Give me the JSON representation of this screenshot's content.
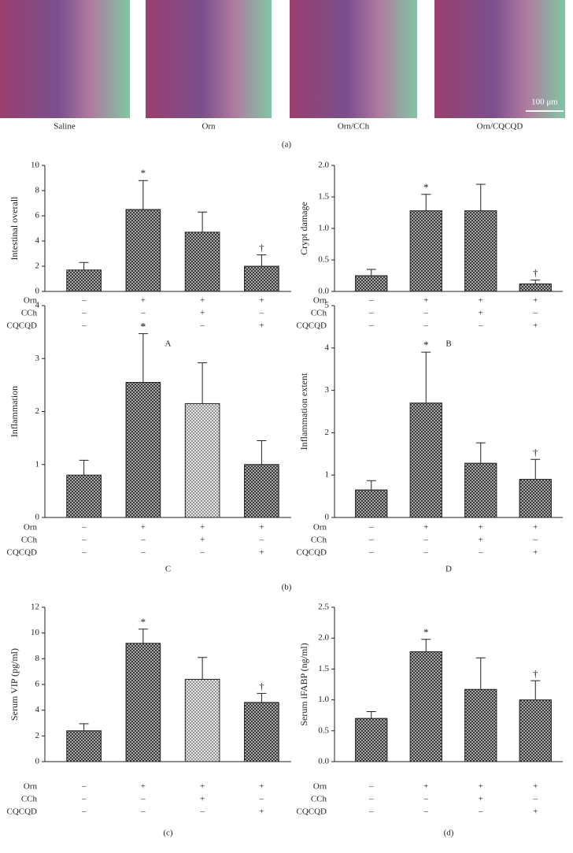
{
  "figure": {
    "images": [
      {
        "label": "Saline"
      },
      {
        "label": "Orn"
      },
      {
        "label": "Orn/CCh"
      },
      {
        "label": "Orn/CQCQD"
      }
    ],
    "scale_bar": "100 μm",
    "group_labels": [
      "(a)",
      "(b)"
    ]
  },
  "chart_data": [
    {
      "type": "bar",
      "label": "A",
      "ylabel": "Intestinal overall",
      "values": [
        1.7,
        6.5,
        4.7,
        2.0
      ],
      "errors": [
        0.6,
        2.3,
        1.6,
        0.9
      ],
      "markers": [
        null,
        "*",
        null,
        "†"
      ],
      "patterns": [
        "dense",
        "dense",
        "dense",
        "dense"
      ],
      "ylim": [
        0,
        10
      ],
      "yticks": [
        0,
        2,
        4,
        6,
        8,
        10
      ],
      "treatments": [
        {
          "name": "Orn",
          "signs": [
            "–",
            "+",
            "+",
            "+"
          ]
        },
        {
          "name": "CCh",
          "signs": [
            "–",
            "–",
            "+",
            "–"
          ]
        },
        {
          "name": "CQCQD",
          "signs": [
            "–",
            "–",
            "–",
            "+"
          ]
        }
      ]
    },
    {
      "type": "bar",
      "label": "B",
      "ylabel": "Crypt damage",
      "values": [
        0.25,
        1.28,
        1.28,
        0.12
      ],
      "errors": [
        0.1,
        0.26,
        0.42,
        0.06
      ],
      "markers": [
        null,
        "*",
        null,
        "†"
      ],
      "patterns": [
        "dense",
        "dense",
        "dense",
        "dense"
      ],
      "ylim": [
        0,
        2
      ],
      "yticks": [
        {
          "value": 0,
          "label": "0.0"
        },
        0.5,
        {
          "value": 1,
          "label": "1.0"
        },
        1.5,
        {
          "value": 2,
          "label": "2.0"
        }
      ],
      "treatments": [
        {
          "name": "Orn",
          "signs": [
            "–",
            "+",
            "+",
            "+"
          ]
        },
        {
          "name": "CCh",
          "signs": [
            "–",
            "–",
            "+",
            "–"
          ]
        },
        {
          "name": "CQCQD",
          "signs": [
            "–",
            "–",
            "–",
            "+"
          ]
        }
      ]
    },
    {
      "type": "bar",
      "label": "C",
      "ylabel": "Inflammation",
      "values": [
        0.8,
        2.55,
        2.15,
        1.0
      ],
      "errors": [
        0.28,
        0.92,
        0.77,
        0.45
      ],
      "markers": [
        null,
        "*",
        null,
        null
      ],
      "patterns": [
        "dense",
        "dense",
        "light",
        "dense"
      ],
      "ylim": [
        0,
        4
      ],
      "yticks": [
        0,
        1,
        2,
        3,
        4
      ],
      "treatments": [
        {
          "name": "Orn",
          "signs": [
            "–",
            "+",
            "+",
            "+"
          ]
        },
        {
          "name": "CCh",
          "signs": [
            "–",
            "–",
            "+",
            "–"
          ]
        },
        {
          "name": "CQCQD",
          "signs": [
            "–",
            "–",
            "–",
            "+"
          ]
        }
      ]
    },
    {
      "type": "bar",
      "label": "D",
      "ylabel": "Inflammation extent",
      "values": [
        0.65,
        2.7,
        1.28,
        0.9
      ],
      "errors": [
        0.22,
        1.2,
        0.48,
        0.47
      ],
      "markers": [
        null,
        "*",
        null,
        "†"
      ],
      "patterns": [
        "dense",
        "dense",
        "dense",
        "dense"
      ],
      "ylim": [
        0,
        5
      ],
      "yticks": [
        0,
        1,
        2,
        3,
        4,
        5
      ],
      "treatments": [
        {
          "name": "Orn",
          "signs": [
            "–",
            "+",
            "+",
            "+"
          ]
        },
        {
          "name": "CCh",
          "signs": [
            "–",
            "–",
            "+",
            "–"
          ]
        },
        {
          "name": "CQCQD",
          "signs": [
            "–",
            "–",
            "–",
            "+"
          ]
        }
      ]
    },
    {
      "type": "bar",
      "label": "(c)",
      "ylabel": "Serum VIP (pg/ml)",
      "values": [
        2.4,
        9.2,
        6.4,
        4.6
      ],
      "errors": [
        0.55,
        1.1,
        1.7,
        0.7
      ],
      "markers": [
        null,
        "*",
        null,
        "†"
      ],
      "patterns": [
        "dense",
        "dense",
        "light",
        "dense"
      ],
      "ylim": [
        0,
        12
      ],
      "yticks": [
        0,
        2,
        4,
        6,
        8,
        10,
        12
      ],
      "treatments": [
        {
          "name": "Orn",
          "signs": [
            "–",
            "+",
            "+",
            "+"
          ]
        },
        {
          "name": "CCh",
          "signs": [
            "–",
            "–",
            "+",
            "–"
          ]
        },
        {
          "name": "CQCQD",
          "signs": [
            "–",
            "–",
            "–",
            "+"
          ]
        }
      ]
    },
    {
      "type": "bar",
      "label": "(d)",
      "ylabel": "Serum iFABP (ng/ml)",
      "values": [
        0.7,
        1.78,
        1.17,
        1.0
      ],
      "errors": [
        0.11,
        0.2,
        0.51,
        0.31
      ],
      "markers": [
        null,
        "*",
        null,
        "†"
      ],
      "patterns": [
        "dense",
        "dense",
        "dense",
        "dense"
      ],
      "ylim": [
        0,
        2.5
      ],
      "yticks": [
        {
          "value": 0,
          "label": "0.0"
        },
        0.5,
        {
          "value": 1,
          "label": "1.0"
        },
        1.5,
        {
          "value": 2,
          "label": "2.0"
        },
        2.5
      ],
      "treatments": [
        {
          "name": "Orn",
          "signs": [
            "–",
            "+",
            "+",
            "+"
          ]
        },
        {
          "name": "CCh",
          "signs": [
            "–",
            "–",
            "+",
            "–"
          ]
        },
        {
          "name": "CQCQD",
          "signs": [
            "–",
            "–",
            "–",
            "+"
          ]
        }
      ]
    }
  ]
}
